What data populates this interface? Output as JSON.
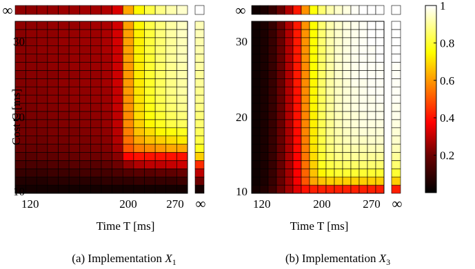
{
  "chart_data": [
    {
      "type": "heatmap",
      "caption": "(a) Implementation X1",
      "caption_prefix": "(a) Implementation ",
      "caption_symbol": "X",
      "caption_sub": "1",
      "xlabel": "Time T [ms]",
      "ylabel": "Cost C [ms]",
      "x_ticks": [
        "120",
        "200",
        "270"
      ],
      "y_ticks": [
        "10",
        "20",
        "30"
      ],
      "inf_label": "∞",
      "x_values": [
        120,
        130,
        140,
        150,
        160,
        170,
        180,
        190,
        200,
        210,
        220,
        230,
        240,
        250,
        260,
        270
      ],
      "y_values": [
        11,
        12,
        13,
        14,
        15,
        16,
        17,
        18,
        19,
        20,
        21,
        22,
        23,
        24,
        25,
        26,
        27,
        28,
        29,
        30,
        31
      ],
      "z_rows": [
        [
          0.03,
          0.03,
          0.03,
          0.03,
          0.03,
          0.03,
          0.03,
          0.03,
          0.03,
          0.03,
          0.03,
          0.03,
          0.03,
          0.03,
          0.03,
          0.03
        ],
        [
          0.05,
          0.05,
          0.05,
          0.06,
          0.06,
          0.06,
          0.06,
          0.06,
          0.07,
          0.07,
          0.07,
          0.08,
          0.08,
          0.08,
          0.08,
          0.09
        ],
        [
          0.08,
          0.08,
          0.08,
          0.09,
          0.09,
          0.09,
          0.1,
          0.1,
          0.1,
          0.11,
          0.12,
          0.13,
          0.13,
          0.14,
          0.14,
          0.15
        ],
        [
          0.11,
          0.11,
          0.11,
          0.12,
          0.12,
          0.13,
          0.13,
          0.13,
          0.14,
          0.16,
          0.22,
          0.26,
          0.28,
          0.28,
          0.29,
          0.3
        ],
        [
          0.13,
          0.13,
          0.14,
          0.14,
          0.15,
          0.15,
          0.16,
          0.16,
          0.17,
          0.2,
          0.38,
          0.4,
          0.4,
          0.4,
          0.4,
          0.4
        ],
        [
          0.15,
          0.15,
          0.15,
          0.16,
          0.16,
          0.17,
          0.17,
          0.18,
          0.19,
          0.24,
          0.5,
          0.56,
          0.58,
          0.6,
          0.62,
          0.62
        ],
        [
          0.16,
          0.16,
          0.16,
          0.17,
          0.17,
          0.18,
          0.18,
          0.19,
          0.2,
          0.26,
          0.54,
          0.62,
          0.66,
          0.68,
          0.7,
          0.72
        ],
        [
          0.17,
          0.17,
          0.17,
          0.18,
          0.18,
          0.18,
          0.19,
          0.2,
          0.21,
          0.27,
          0.56,
          0.66,
          0.7,
          0.74,
          0.76,
          0.78
        ],
        [
          0.17,
          0.17,
          0.18,
          0.18,
          0.19,
          0.19,
          0.2,
          0.2,
          0.22,
          0.28,
          0.58,
          0.68,
          0.74,
          0.78,
          0.82,
          0.84
        ],
        [
          0.18,
          0.18,
          0.18,
          0.19,
          0.19,
          0.2,
          0.2,
          0.21,
          0.22,
          0.28,
          0.58,
          0.7,
          0.76,
          0.8,
          0.84,
          0.87
        ],
        [
          0.18,
          0.18,
          0.19,
          0.19,
          0.2,
          0.2,
          0.21,
          0.21,
          0.23,
          0.29,
          0.59,
          0.7,
          0.77,
          0.82,
          0.86,
          0.89
        ],
        [
          0.19,
          0.19,
          0.19,
          0.2,
          0.2,
          0.21,
          0.21,
          0.22,
          0.23,
          0.29,
          0.59,
          0.71,
          0.78,
          0.83,
          0.87,
          0.9
        ],
        [
          0.19,
          0.19,
          0.19,
          0.2,
          0.2,
          0.21,
          0.21,
          0.22,
          0.23,
          0.29,
          0.6,
          0.71,
          0.79,
          0.84,
          0.88,
          0.91
        ],
        [
          0.19,
          0.19,
          0.2,
          0.2,
          0.21,
          0.21,
          0.22,
          0.22,
          0.24,
          0.3,
          0.6,
          0.72,
          0.79,
          0.84,
          0.88,
          0.91
        ],
        [
          0.19,
          0.2,
          0.2,
          0.2,
          0.21,
          0.21,
          0.22,
          0.22,
          0.24,
          0.3,
          0.6,
          0.72,
          0.8,
          0.85,
          0.89,
          0.92
        ],
        [
          0.2,
          0.2,
          0.2,
          0.21,
          0.21,
          0.22,
          0.22,
          0.23,
          0.24,
          0.3,
          0.6,
          0.72,
          0.8,
          0.85,
          0.89,
          0.92
        ],
        [
          0.2,
          0.2,
          0.2,
          0.21,
          0.21,
          0.22,
          0.22,
          0.23,
          0.24,
          0.3,
          0.61,
          0.73,
          0.8,
          0.86,
          0.9,
          0.93
        ],
        [
          0.2,
          0.2,
          0.21,
          0.21,
          0.21,
          0.22,
          0.22,
          0.23,
          0.25,
          0.3,
          0.61,
          0.73,
          0.81,
          0.86,
          0.9,
          0.93
        ],
        [
          0.2,
          0.2,
          0.21,
          0.21,
          0.22,
          0.22,
          0.23,
          0.23,
          0.25,
          0.31,
          0.61,
          0.73,
          0.81,
          0.86,
          0.9,
          0.93
        ],
        [
          0.2,
          0.21,
          0.21,
          0.21,
          0.22,
          0.22,
          0.23,
          0.23,
          0.25,
          0.31,
          0.61,
          0.73,
          0.81,
          0.87,
          0.91,
          0.94
        ],
        [
          0.21,
          0.21,
          0.21,
          0.22,
          0.22,
          0.22,
          0.23,
          0.24,
          0.25,
          0.31,
          0.61,
          0.74,
          0.82,
          0.87,
          0.91,
          0.94
        ]
      ],
      "z_top_inf": [
        0.21,
        0.21,
        0.22,
        0.22,
        0.23,
        0.23,
        0.24,
        0.24,
        0.26,
        0.32,
        0.62,
        0.74,
        0.82,
        0.88,
        0.92,
        0.95
      ],
      "z_right_inf": [
        0.03,
        0.16,
        0.28,
        0.44,
        0.68,
        0.78,
        0.82,
        0.84,
        0.86,
        0.87,
        0.88,
        0.89,
        0.89,
        0.9,
        0.9,
        0.91,
        0.91,
        0.92,
        0.92,
        0.93,
        0.93
      ],
      "z_corner_inf": 1.0
    },
    {
      "type": "heatmap",
      "caption": "(b) Implementation X3",
      "caption_prefix": "(b) Implementation ",
      "caption_symbol": "X",
      "caption_sub": "3",
      "xlabel": "Time T [ms]",
      "x_ticks": [
        "120",
        "200",
        "270"
      ],
      "y_ticks": [
        "10",
        "20",
        "30"
      ],
      "inf_label": "∞",
      "x_values": [
        120,
        130,
        140,
        150,
        160,
        170,
        180,
        190,
        200,
        210,
        220,
        230,
        240,
        250,
        260,
        270
      ],
      "y_values": [
        11,
        12,
        13,
        14,
        15,
        16,
        17,
        18,
        19,
        20,
        21,
        22,
        23,
        24,
        25,
        26,
        27,
        28,
        29,
        30,
        31
      ],
      "z_rows": [
        [
          0.03,
          0.05,
          0.09,
          0.16,
          0.24,
          0.33,
          0.4,
          0.42,
          0.42,
          0.42,
          0.42,
          0.42,
          0.42,
          0.42,
          0.42,
          0.42
        ],
        [
          0.02,
          0.04,
          0.08,
          0.15,
          0.24,
          0.36,
          0.5,
          0.62,
          0.66,
          0.68,
          0.68,
          0.68,
          0.68,
          0.68,
          0.68,
          0.68
        ],
        [
          0.02,
          0.04,
          0.08,
          0.15,
          0.24,
          0.37,
          0.52,
          0.66,
          0.74,
          0.78,
          0.8,
          0.8,
          0.8,
          0.8,
          0.8,
          0.8
        ],
        [
          0.02,
          0.04,
          0.08,
          0.15,
          0.25,
          0.38,
          0.54,
          0.68,
          0.78,
          0.82,
          0.84,
          0.85,
          0.85,
          0.86,
          0.86,
          0.86
        ],
        [
          0.02,
          0.04,
          0.08,
          0.15,
          0.25,
          0.38,
          0.55,
          0.7,
          0.8,
          0.85,
          0.88,
          0.89,
          0.9,
          0.9,
          0.9,
          0.9
        ],
        [
          0.02,
          0.04,
          0.08,
          0.15,
          0.25,
          0.39,
          0.56,
          0.71,
          0.81,
          0.87,
          0.9,
          0.91,
          0.92,
          0.92,
          0.93,
          0.93
        ],
        [
          0.02,
          0.04,
          0.08,
          0.15,
          0.25,
          0.39,
          0.56,
          0.72,
          0.82,
          0.88,
          0.91,
          0.93,
          0.94,
          0.94,
          0.95,
          0.95
        ],
        [
          0.02,
          0.04,
          0.08,
          0.15,
          0.25,
          0.39,
          0.57,
          0.72,
          0.83,
          0.89,
          0.92,
          0.94,
          0.95,
          0.96,
          0.96,
          0.96
        ],
        [
          0.02,
          0.04,
          0.08,
          0.15,
          0.26,
          0.4,
          0.57,
          0.73,
          0.83,
          0.89,
          0.93,
          0.95,
          0.96,
          0.97,
          0.97,
          0.97
        ],
        [
          0.02,
          0.04,
          0.08,
          0.15,
          0.26,
          0.4,
          0.57,
          0.73,
          0.84,
          0.9,
          0.93,
          0.95,
          0.96,
          0.97,
          0.98,
          0.98
        ],
        [
          0.02,
          0.04,
          0.08,
          0.15,
          0.26,
          0.4,
          0.58,
          0.74,
          0.84,
          0.9,
          0.94,
          0.96,
          0.97,
          0.98,
          0.98,
          0.98
        ],
        [
          0.02,
          0.04,
          0.08,
          0.15,
          0.26,
          0.4,
          0.58,
          0.74,
          0.84,
          0.9,
          0.94,
          0.96,
          0.97,
          0.98,
          0.98,
          0.99
        ],
        [
          0.02,
          0.04,
          0.08,
          0.15,
          0.26,
          0.4,
          0.58,
          0.74,
          0.85,
          0.91,
          0.94,
          0.96,
          0.97,
          0.98,
          0.99,
          0.99
        ],
        [
          0.02,
          0.04,
          0.08,
          0.15,
          0.26,
          0.41,
          0.58,
          0.74,
          0.85,
          0.91,
          0.94,
          0.96,
          0.98,
          0.98,
          0.99,
          0.99
        ],
        [
          0.02,
          0.04,
          0.08,
          0.15,
          0.26,
          0.41,
          0.58,
          0.75,
          0.85,
          0.91,
          0.95,
          0.97,
          0.98,
          0.99,
          0.99,
          0.99
        ],
        [
          0.02,
          0.04,
          0.08,
          0.15,
          0.26,
          0.41,
          0.58,
          0.75,
          0.85,
          0.91,
          0.95,
          0.97,
          0.98,
          0.99,
          0.99,
          0.99
        ],
        [
          0.02,
          0.04,
          0.08,
          0.15,
          0.26,
          0.41,
          0.59,
          0.75,
          0.85,
          0.91,
          0.95,
          0.97,
          0.98,
          0.99,
          0.99,
          1.0
        ],
        [
          0.02,
          0.04,
          0.08,
          0.15,
          0.26,
          0.41,
          0.59,
          0.75,
          0.85,
          0.91,
          0.95,
          0.97,
          0.98,
          0.99,
          0.99,
          1.0
        ],
        [
          0.02,
          0.04,
          0.08,
          0.15,
          0.26,
          0.41,
          0.59,
          0.75,
          0.86,
          0.92,
          0.95,
          0.97,
          0.98,
          0.99,
          1.0,
          1.0
        ],
        [
          0.02,
          0.04,
          0.08,
          0.15,
          0.26,
          0.41,
          0.59,
          0.75,
          0.86,
          0.92,
          0.95,
          0.97,
          0.98,
          0.99,
          1.0,
          1.0
        ],
        [
          0.02,
          0.04,
          0.08,
          0.15,
          0.26,
          0.41,
          0.59,
          0.75,
          0.86,
          0.92,
          0.95,
          0.97,
          0.98,
          0.99,
          1.0,
          1.0
        ]
      ],
      "z_top_inf": [
        0.02,
        0.04,
        0.08,
        0.15,
        0.26,
        0.41,
        0.59,
        0.76,
        0.86,
        0.92,
        0.95,
        0.97,
        0.99,
        1.0,
        1.0,
        1.0
      ],
      "z_right_inf": [
        0.42,
        0.68,
        0.8,
        0.86,
        0.9,
        0.93,
        0.95,
        0.96,
        0.97,
        0.98,
        0.98,
        0.99,
        0.99,
        0.99,
        0.99,
        0.99,
        1.0,
        1.0,
        1.0,
        1.0,
        1.0
      ],
      "z_corner_inf": 1.0
    }
  ],
  "colorbar": {
    "ticks": [
      "1",
      "0.8",
      "0.6",
      "0.4",
      "0.2"
    ],
    "tick_values": [
      1.0,
      0.8,
      0.6,
      0.4,
      0.2
    ],
    "range": [
      0,
      1
    ],
    "colormap": "hot"
  }
}
